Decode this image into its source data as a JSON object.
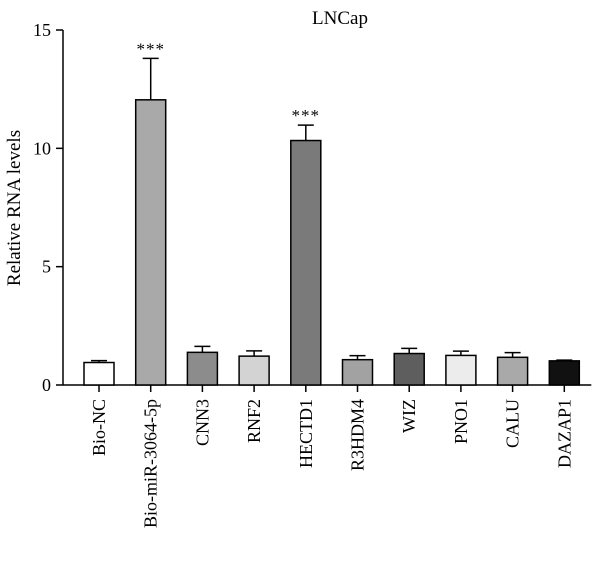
{
  "chart_data": {
    "type": "bar",
    "title": "LNCap",
    "ylabel": "Relative RNA levels",
    "xlabel": "",
    "ylim": [
      0,
      15
    ],
    "yticks": [
      0,
      5,
      10,
      15
    ],
    "grid": false,
    "categories": [
      "Bio-NC",
      "Bio-miR-3064-5p",
      "CNN3",
      "RNF2",
      "HECTD1",
      "R3HDM4",
      "WIZ",
      "PNO1",
      "CALU",
      "DAZAP1"
    ],
    "values": [
      0.95,
      12.05,
      1.38,
      1.22,
      10.33,
      1.07,
      1.33,
      1.25,
      1.17,
      1.02
    ],
    "errors": [
      0.08,
      1.75,
      0.25,
      0.22,
      0.65,
      0.17,
      0.22,
      0.18,
      0.2,
      0.03
    ],
    "colors": [
      "#ffffff",
      "#a9a9a9",
      "#8c8c8c",
      "#d3d3d3",
      "#7a7a7a",
      "#a2a2a2",
      "#5e5e5e",
      "#ececec",
      "#a9a9a9",
      "#111111"
    ],
    "significance": [
      "",
      "***",
      "",
      "",
      "***",
      "",
      "",
      "",
      "",
      ""
    ]
  }
}
